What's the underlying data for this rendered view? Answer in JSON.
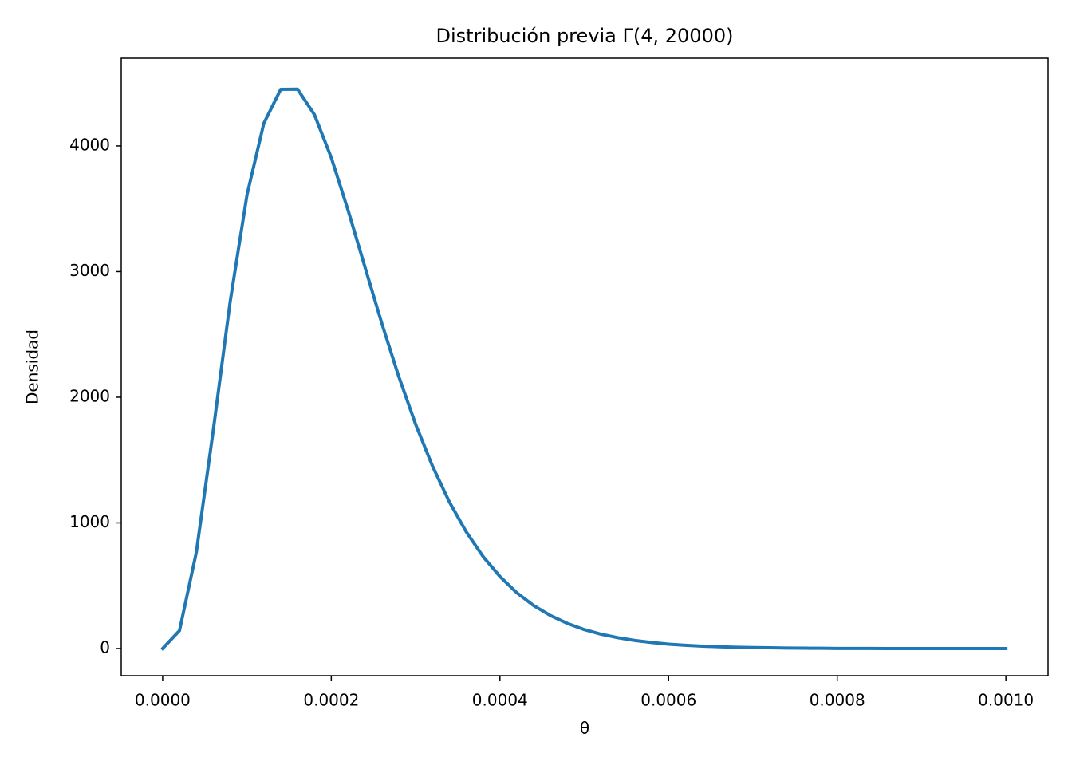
{
  "chart_data": {
    "type": "line",
    "title": "Distribución previa Γ(4, 20000)",
    "xlabel": "θ",
    "ylabel": "Densidad",
    "x": [
      0,
      2e-05,
      4e-05,
      6e-05,
      8e-05,
      0.0001,
      0.00012,
      0.00014,
      0.00016,
      0.00018,
      0.0002,
      0.00022,
      0.00024,
      0.00026,
      0.00028,
      0.0003,
      0.00032,
      0.00034,
      0.00036,
      0.00038,
      0.0004,
      0.00042,
      0.00044,
      0.00046,
      0.00048,
      0.0005,
      0.00052,
      0.00054,
      0.00056,
      0.00058,
      0.0006,
      0.00062,
      0.00064,
      0.00066,
      0.00068,
      0.0007,
      0.00072,
      0.00074,
      0.00076,
      0.00078,
      0.0008,
      0.00082,
      0.00084,
      0.00086,
      0.00088,
      0.0009,
      0.00092,
      0.00094,
      0.00096,
      0.00098,
      0.001
    ],
    "series": [
      {
        "color": "#1f77b4",
        "values": [
          0,
          143,
          767,
          1735,
          2757,
          3609,
          4180,
          4450,
          4452,
          4249,
          3907,
          3486,
          3034,
          2586,
          2165,
          1785,
          1452,
          1167,
          929,
          732,
          573,
          444,
          342,
          262,
          200,
          151,
          114,
          86,
          64,
          48,
          35,
          26,
          19,
          14,
          10,
          8,
          6,
          4,
          3,
          2,
          1,
          1,
          1,
          0,
          0,
          0,
          0,
          0,
          0,
          0,
          0
        ]
      }
    ],
    "xlim": [
      -4.91e-05,
      0.00105
    ],
    "ylim": [
      -216,
      4698
    ],
    "xticks": [
      {
        "value": 0,
        "label": "0.0000"
      },
      {
        "value": 0.0002,
        "label": "0.0002"
      },
      {
        "value": 0.0004,
        "label": "0.0004"
      },
      {
        "value": 0.0006,
        "label": "0.0006"
      },
      {
        "value": 0.0008,
        "label": "0.0008"
      },
      {
        "value": 0.001,
        "label": "0.0010"
      }
    ],
    "yticks": [
      0,
      1000,
      2000,
      3000,
      4000
    ]
  }
}
